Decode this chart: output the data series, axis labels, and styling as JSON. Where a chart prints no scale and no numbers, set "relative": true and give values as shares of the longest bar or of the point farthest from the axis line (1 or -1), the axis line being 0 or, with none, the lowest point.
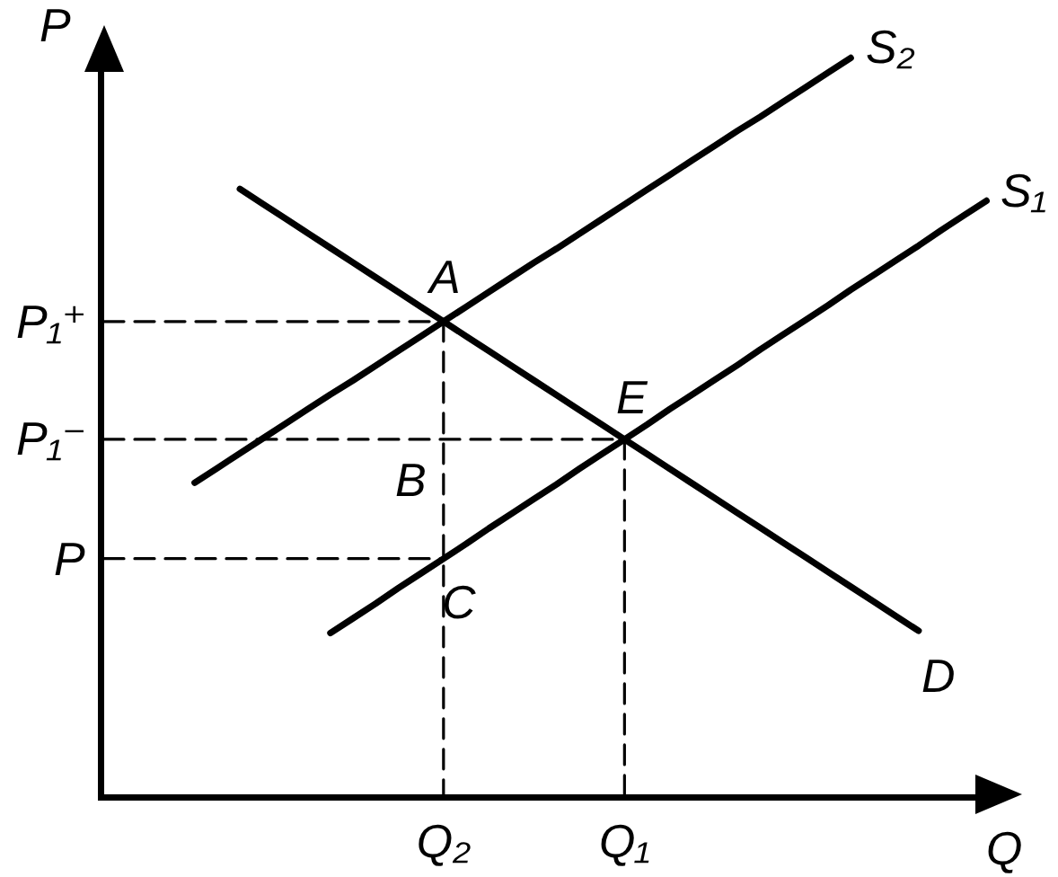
{
  "chart_data": {
    "type": "line",
    "relative": true,
    "xlabel": "Q",
    "ylabel": "P",
    "line_style": "solid",
    "grid": false,
    "legend": false,
    "categories": [
      null,
      null,
      null,
      null,
      null,
      null,
      null,
      null,
      null,
      null,
      null,
      null,
      null,
      null,
      null,
      "Q₂",
      null,
      null,
      null,
      null,
      null,
      null,
      null,
      "Q₁",
      null,
      null,
      null,
      null,
      null,
      null,
      null,
      null,
      null,
      null,
      null,
      null,
      null,
      null,
      null,
      null
    ],
    "series": [
      {
        "name": "S₂",
        "color": "#000000",
        "values": [
          null,
          null,
          null,
          null,
          0.423,
          0.443,
          0.463,
          0.483,
          0.503,
          0.523,
          0.543,
          0.562,
          0.582,
          0.602,
          0.622,
          0.642,
          0.662,
          0.682,
          0.702,
          0.722,
          0.741,
          0.761,
          0.781,
          0.801,
          0.821,
          0.841,
          0.861,
          0.881,
          0.901,
          0.92,
          0.94,
          0.96,
          0.98,
          1.0,
          null,
          null,
          null,
          null,
          null,
          null
        ]
      },
      {
        "name": "S₁",
        "color": "#000000",
        "values": [
          null,
          null,
          null,
          null,
          null,
          null,
          null,
          null,
          null,
          null,
          0.219,
          0.239,
          0.259,
          0.28,
          0.3,
          0.32,
          0.34,
          0.361,
          0.381,
          0.401,
          0.421,
          0.442,
          0.462,
          0.482,
          0.502,
          0.523,
          0.543,
          0.563,
          0.583,
          0.604,
          0.624,
          0.644,
          0.664,
          0.685,
          0.705,
          0.725,
          0.745,
          0.766,
          0.786,
          0.806
        ]
      },
      {
        "name": "D",
        "color": "#000000",
        "values": [
          null,
          null,
          null,
          null,
          null,
          null,
          0.822,
          0.802,
          0.782,
          0.762,
          0.742,
          0.722,
          0.702,
          0.682,
          0.662,
          0.642,
          0.622,
          0.602,
          0.582,
          0.562,
          0.542,
          0.522,
          0.502,
          0.482,
          0.462,
          0.442,
          0.422,
          0.402,
          0.382,
          0.362,
          0.342,
          0.322,
          0.302,
          0.282,
          0.262,
          0.242,
          0.222,
          null,
          null,
          null
        ]
      },
      {
        "name": "P₁⁺",
        "color": "#000000",
        "line_style": "dashed",
        "values": [
          0.642,
          0.642,
          0.642,
          0.642,
          0.642,
          0.642,
          0.642,
          0.642,
          0.642,
          0.642,
          0.642,
          0.642,
          0.642,
          0.642,
          0.642,
          0.642,
          null,
          null,
          null,
          null,
          null,
          null,
          null,
          null,
          null,
          null,
          null,
          null,
          null,
          null,
          null,
          null,
          null,
          null,
          null,
          null,
          null,
          null,
          null,
          null
        ]
      },
      {
        "color": "#000000",
        "line_style": "dashed",
        "x": [
          "Q₂",
          "Q₂"
        ],
        "values": [
          0.642,
          0
        ]
      },
      {
        "name": "P₁⁻",
        "color": "#000000",
        "line_style": "dashed",
        "values": [
          0.482,
          0.482,
          0.482,
          0.482,
          0.482,
          0.482,
          0.482,
          0.482,
          0.482,
          0.482,
          0.482,
          0.482,
          0.482,
          0.482,
          0.482,
          0.482,
          0.482,
          0.482,
          0.482,
          0.482,
          0.482,
          0.482,
          0.482,
          0.482,
          null,
          null,
          null,
          null,
          null,
          null,
          null,
          null,
          null,
          null,
          null,
          null,
          null,
          null,
          null,
          null
        ]
      },
      {
        "color": "#000000",
        "line_style": "dashed",
        "x": [
          "Q₁",
          "Q₁"
        ],
        "values": [
          0.482,
          0
        ]
      },
      {
        "name": "P",
        "color": "#000000",
        "line_style": "dashed",
        "values": [
          0.32,
          0.32,
          0.32,
          0.32,
          0.32,
          0.32,
          0.32,
          0.32,
          0.32,
          0.32,
          0.32,
          0.32,
          0.32,
          0.32,
          0.32,
          0.32,
          null,
          null,
          null,
          null,
          null,
          null,
          null,
          null,
          null,
          null,
          null,
          null,
          null,
          null,
          null,
          null,
          null,
          null,
          null,
          null,
          null,
          null,
          null,
          null
        ]
      }
    ],
    "annotations": [
      {
        "text": "A",
        "x": "Q₂",
        "y": 0.642
      },
      {
        "text": "E",
        "x": "Q₁",
        "y": 0.482
      },
      {
        "text": "B",
        "x": "Q₂",
        "y": 0.482
      },
      {
        "text": "C",
        "x": "Q₂",
        "y": 0.32
      }
    ]
  }
}
